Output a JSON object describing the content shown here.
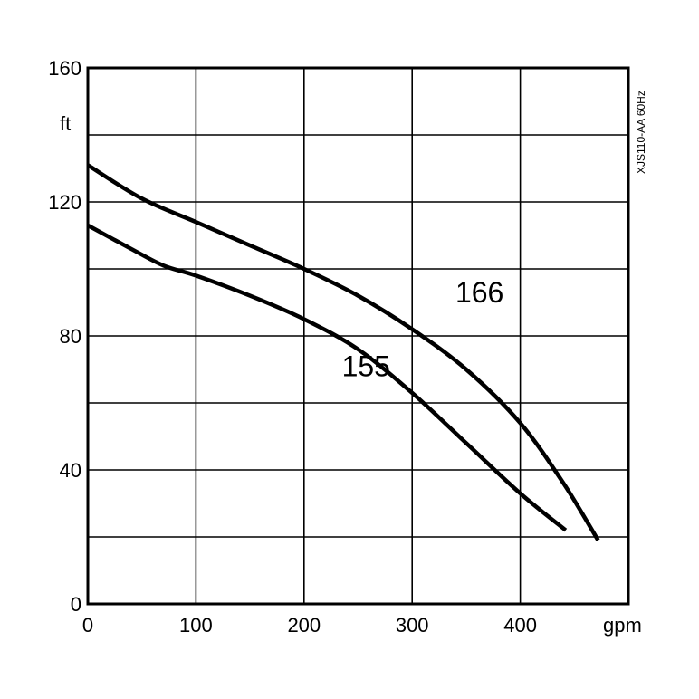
{
  "chart_data": {
    "type": "line",
    "title": "",
    "side_label": "XJS110-AA 60Hz",
    "xlabel": "gpm",
    "ylabel": "ft",
    "xlim": [
      0,
      500
    ],
    "ylim": [
      0,
      160
    ],
    "x_ticks": [
      "0",
      "100",
      "200",
      "300",
      "400"
    ],
    "y_ticks": [
      "0",
      "40",
      "80",
      "120",
      "160"
    ],
    "x_grid": [
      0,
      100,
      200,
      300,
      400,
      500
    ],
    "y_grid": [
      0,
      20,
      40,
      60,
      80,
      100,
      120,
      140,
      160
    ],
    "grid": true,
    "series": [
      {
        "name": "166",
        "x": [
          0,
          50,
          100,
          150,
          200,
          250,
          300,
          350,
          400,
          440,
          472
        ],
        "y": [
          131,
          121,
          114,
          107,
          100,
          92,
          82,
          70,
          54,
          36,
          19
        ]
      },
      {
        "name": "155",
        "x": [
          0,
          40,
          70,
          100,
          150,
          200,
          250,
          300,
          350,
          400,
          442
        ],
        "y": [
          113,
          106,
          101,
          98,
          92,
          85,
          76,
          63,
          48,
          33,
          22
        ]
      }
    ],
    "annotations": [
      {
        "text": "166",
        "x": 340,
        "y": 90
      },
      {
        "text": "155",
        "x": 235,
        "y": 68
      }
    ]
  }
}
